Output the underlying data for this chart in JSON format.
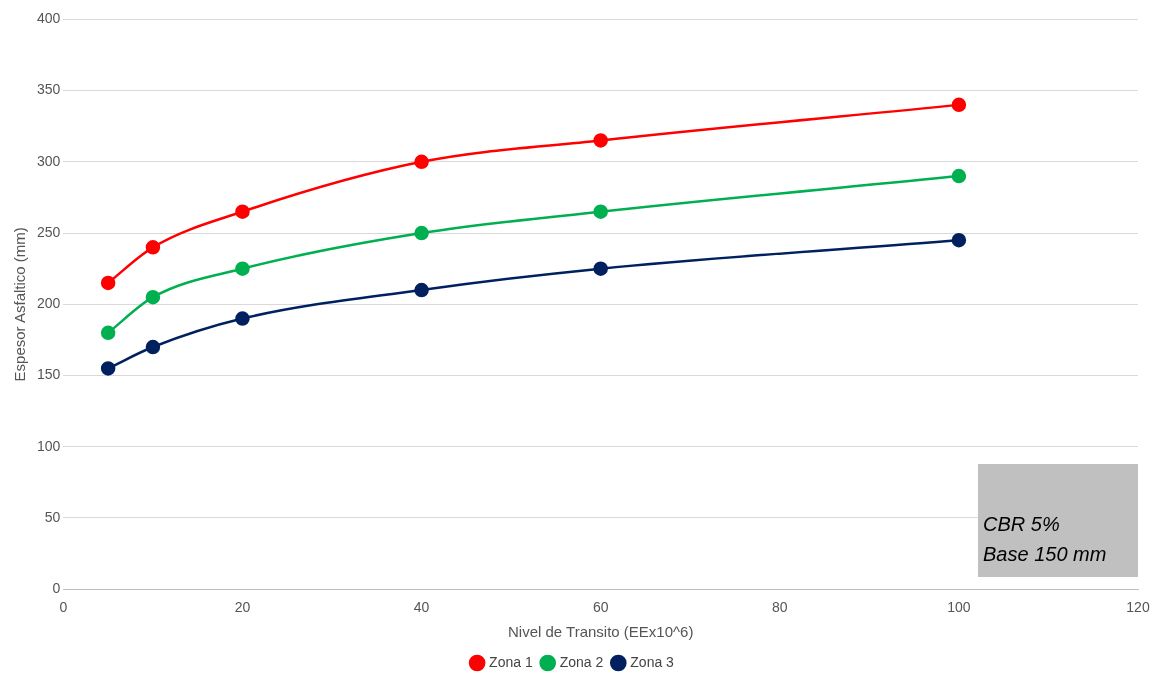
{
  "chart_data": {
    "type": "line",
    "xlabel": "Nivel de Transito (EEx10^6)",
    "ylabel": "Espesor Asfaltico (mm)",
    "x": [
      5,
      10,
      20,
      40,
      60,
      100
    ],
    "series": [
      {
        "name": "Zona 1",
        "color": "#ff0000",
        "values": [
          215,
          240,
          265,
          300,
          315,
          340
        ]
      },
      {
        "name": "Zona 2",
        "color": "#00b050",
        "values": [
          180,
          205,
          225,
          250,
          265,
          290
        ]
      },
      {
        "name": "Zona 3",
        "color": "#002060",
        "values": [
          155,
          170,
          190,
          210,
          225,
          245
        ]
      }
    ],
    "xlim": [
      0,
      120
    ],
    "xticks": [
      0,
      20,
      40,
      60,
      80,
      100,
      120
    ],
    "ylim": [
      0,
      400
    ],
    "yticks": [
      0,
      50,
      100,
      150,
      200,
      250,
      300,
      350,
      400
    ],
    "grid": "y",
    "legend": "bottom",
    "marker": "circle",
    "line_style": "solid",
    "annotations": [
      "CBR 5%",
      "Base 150 mm"
    ]
  }
}
